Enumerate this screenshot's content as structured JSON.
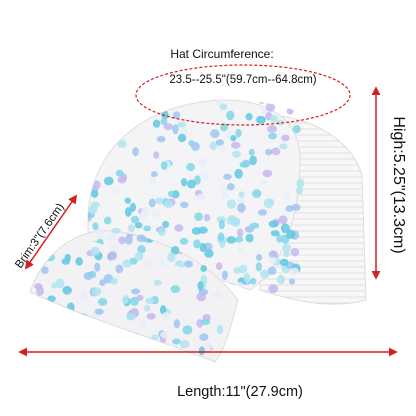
{
  "labels": {
    "circumference_title": "Hat Circumference:",
    "circumference_value": "23.5--25.5\"(59.7cm--64.8cm)",
    "high": "High:5.25\"(13.3cm)",
    "brim": "Brim:3\"(7.6cm)",
    "length": "Length:11\"(27.9cm)"
  }
}
